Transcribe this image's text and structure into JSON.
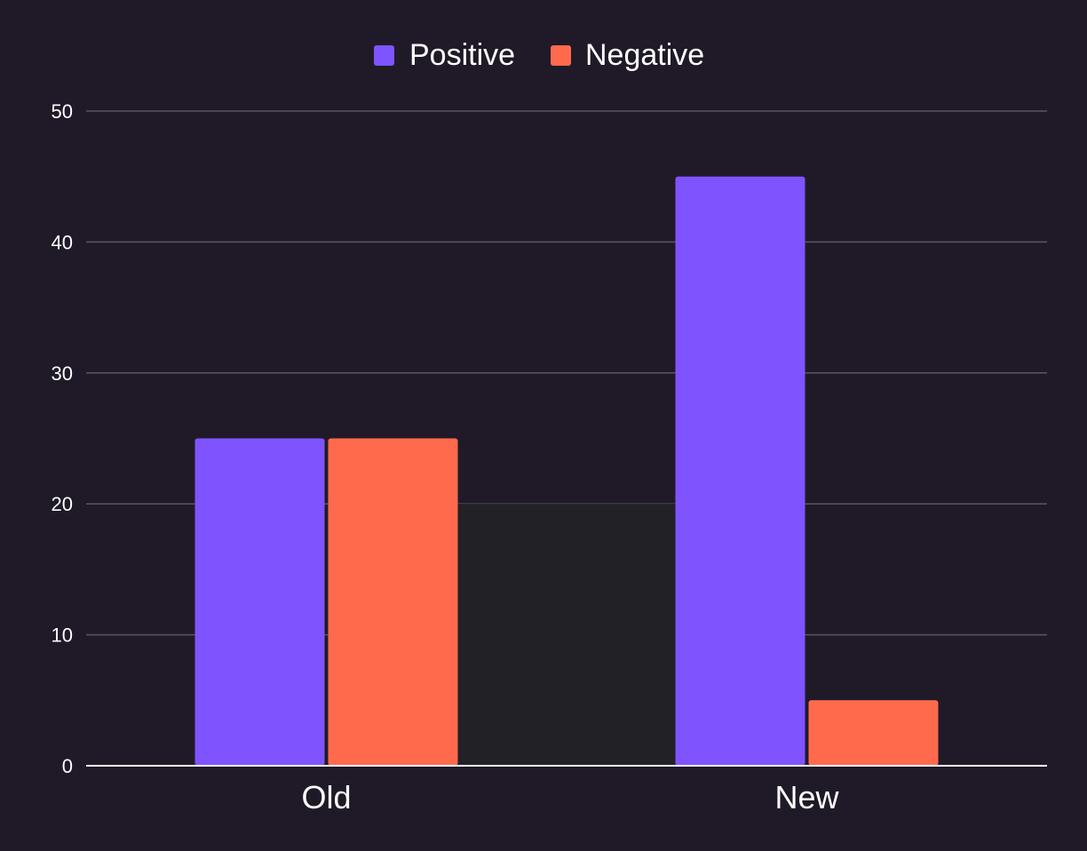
{
  "chart_data": {
    "type": "bar",
    "categories": [
      "Old",
      "New"
    ],
    "series": [
      {
        "name": "Positive",
        "values": [
          25,
          45
        ],
        "color": "#7f54ff"
      },
      {
        "name": "Negative",
        "values": [
          25,
          5
        ],
        "color": "#ff6a4d"
      }
    ],
    "title": "",
    "xlabel": "",
    "ylabel": "",
    "ylim": [
      0,
      50
    ],
    "yticks": [
      "0",
      "10",
      "20",
      "30",
      "40",
      "50"
    ],
    "grid": true,
    "legend": "top-center",
    "colors": {
      "background": "#201a28",
      "plot_highlight": "#222126",
      "text": "#ffffff",
      "grid": "#5a5560"
    }
  }
}
